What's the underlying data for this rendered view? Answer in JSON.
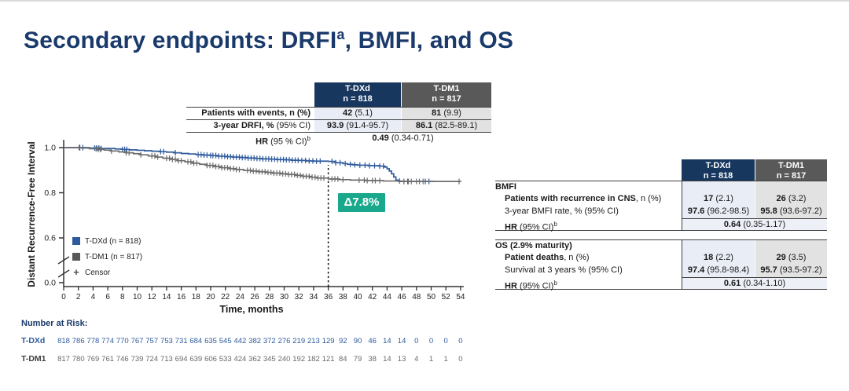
{
  "title": {
    "prefix": "Secondary endpoints: DRFI",
    "sup": "a",
    "suffix": ", BMFI, and OS"
  },
  "colors": {
    "title_navy": "#1a3a6b",
    "header_blue": "#17375e",
    "header_gray": "#595959",
    "cell_light_blue": "#e9edf6",
    "cell_light_gray": "#e2e2e2",
    "curve_blue": "#2e5b9e",
    "curve_gray": "#6d6d6d",
    "delta_green": "#19a88b"
  },
  "drfi_table": {
    "col_headers": [
      {
        "line1": "T-DXd",
        "line2": "n = 818"
      },
      {
        "line1": "T-DM1",
        "line2": "n = 817"
      }
    ],
    "rows": [
      {
        "label_b": "Patients with events, n (%)",
        "label_r": "",
        "tdxd_b": "42",
        "tdxd_r": " (5.1)",
        "tdm1_b": "81",
        "tdm1_r": " (9.9)"
      },
      {
        "label_b": "3-year DRFI, %",
        "label_r": " (95% CI)",
        "tdxd_b": "93.9",
        "tdxd_r": " (91.4-95.7)",
        "tdm1_b": "86.1",
        "tdm1_r": " (82.5-89.1)"
      }
    ],
    "hr_row": {
      "label_b": "HR",
      "label_r": " (95 % CI)",
      "sup": "b",
      "value_b": "0.49",
      "value_r": " (0.34-0.71)"
    }
  },
  "right_tables": {
    "col_headers": [
      {
        "line1": "T-DXd",
        "line2": "n = 818"
      },
      {
        "line1": "T-DM1",
        "line2": "n = 817"
      }
    ],
    "bmfi": {
      "section": "BMFI",
      "rows": [
        {
          "label_b": "Patients with recurrence in CNS",
          "label_r": ", n (%)",
          "tdxd_b": "17",
          "tdxd_r": " (2.1)",
          "tdm1_b": "26",
          "tdm1_r": " (3.2)"
        },
        {
          "label_b": "",
          "label_r": "3-year BMFI rate, % (95% CI)",
          "tdxd_b": "97.6",
          "tdxd_r": " (96.2-98.5)",
          "tdm1_b": "95.8",
          "tdm1_r": " (93.6-97.2)"
        }
      ],
      "hr_row": {
        "label_b": "HR",
        "label_r": " (95% CI)",
        "sup": "b",
        "value_b": "0.64",
        "value_r": " (0.35-1.17)"
      }
    },
    "os": {
      "section": "OS (2.9% maturity)",
      "rows": [
        {
          "label_b": "Patient deaths",
          "label_r": ", n (%)",
          "tdxd_b": "18",
          "tdxd_r": " (2.2)",
          "tdm1_b": "29",
          "tdm1_r": " (3.5)"
        },
        {
          "label_b": "",
          "label_r": "Survival at 3 years % (95% CI)",
          "tdxd_b": "97.4",
          "tdxd_r": " (95.8-98.4)",
          "tdm1_b": "95.7",
          "tdm1_r": " (93.5-97.2)"
        }
      ],
      "hr_row": {
        "label_b": "HR",
        "label_r": " (95% CI)",
        "sup": "b",
        "value_b": "0.61",
        "value_r": " (0.34-1.10)"
      }
    }
  },
  "chart_data": {
    "type": "line",
    "subtype": "kaplan-meier-step",
    "ylabel": "Distant Recurrence-Free Interval",
    "xlabel": "Time, months",
    "xlim": [
      0,
      54
    ],
    "x_ticks": [
      0,
      2,
      4,
      6,
      8,
      10,
      12,
      14,
      16,
      18,
      20,
      22,
      24,
      26,
      28,
      30,
      32,
      34,
      36,
      38,
      40,
      42,
      44,
      46,
      48,
      50,
      52,
      54
    ],
    "y_ticks": [
      0.0,
      0.6,
      0.8,
      1.0
    ],
    "y_break": true,
    "grid": false,
    "reference_line_x": 36,
    "annotation": {
      "text": "Δ7.8%",
      "x": 38,
      "y": 0.88,
      "color": "#19a88b"
    },
    "key_values": {
      "tdxd_3yr_drfi": 93.9,
      "tdm1_3yr_drfi": 86.1,
      "delta_pct": 7.8
    },
    "legend": {
      "position": "inside-left",
      "censor_symbol": "+",
      "censor_label": "Censor"
    },
    "series": [
      {
        "name": "T-DXd (n = 818)",
        "color": "#2e5b9e",
        "end": 50.5,
        "steps": [
          [
            3.5,
            0.998
          ],
          [
            5,
            0.996
          ],
          [
            7,
            0.994
          ],
          [
            8,
            0.992
          ],
          [
            9,
            0.99
          ],
          [
            10,
            0.988
          ],
          [
            11,
            0.986
          ],
          [
            12,
            0.984
          ],
          [
            13,
            0.982
          ],
          [
            14,
            0.98
          ],
          [
            15,
            0.977
          ],
          [
            16,
            0.974
          ],
          [
            17,
            0.972
          ],
          [
            18,
            0.969
          ],
          [
            19,
            0.967
          ],
          [
            20,
            0.965
          ],
          [
            21,
            0.962
          ],
          [
            22,
            0.96
          ],
          [
            23,
            0.958
          ],
          [
            24,
            0.956
          ],
          [
            25,
            0.954
          ],
          [
            26,
            0.952
          ],
          [
            27,
            0.95
          ],
          [
            28,
            0.949
          ],
          [
            29,
            0.947
          ],
          [
            30,
            0.946
          ],
          [
            31,
            0.944
          ],
          [
            32,
            0.943
          ],
          [
            33,
            0.941
          ],
          [
            34,
            0.94
          ],
          [
            36,
            0.939
          ],
          [
            37,
            0.933
          ],
          [
            38,
            0.929
          ],
          [
            38.6,
            0.926
          ],
          [
            39.3,
            0.924
          ],
          [
            40,
            0.922
          ],
          [
            41.5,
            0.92
          ],
          [
            43,
            0.918
          ],
          [
            43.6,
            0.914
          ],
          [
            44,
            0.906
          ],
          [
            44.3,
            0.896
          ],
          [
            44.6,
            0.884
          ],
          [
            44.9,
            0.87
          ],
          [
            45.2,
            0.856
          ],
          [
            45.6,
            0.85
          ]
        ],
        "censor_x": [
          2.2,
          2.6,
          4.2,
          4.5,
          4.8,
          5.1,
          8,
          8.3,
          8.6,
          13.2,
          13.6,
          15.2,
          18.3,
          18.7,
          19.1,
          19.5,
          20,
          20.3,
          20.7,
          21.1,
          21.5,
          21.9,
          22.3,
          22.7,
          23.1,
          23.5,
          23.9,
          24.3,
          24.7,
          25.1,
          25.5,
          25.9,
          26.3,
          26.7,
          27.1,
          27.5,
          27.9,
          28.3,
          28.7,
          29.1,
          29.5,
          29.9,
          30.3,
          30.7,
          31.1,
          31.5,
          31.9,
          32.4,
          32.9,
          33.4,
          33.9,
          34.4,
          34.9,
          36.5,
          37,
          37.6,
          38.3,
          39,
          39.6,
          40.3,
          41,
          41.6,
          42.3,
          43,
          43.5,
          46.3,
          46.8,
          49.2,
          49.7
        ]
      },
      {
        "name": "T-DM1 (n = 817)",
        "color": "#6d6d6d",
        "end": 54,
        "steps": [
          [
            2.5,
            0.998
          ],
          [
            3.5,
            0.995
          ],
          [
            4.5,
            0.992
          ],
          [
            5.5,
            0.989
          ],
          [
            6.5,
            0.985
          ],
          [
            7.5,
            0.981
          ],
          [
            8.5,
            0.977
          ],
          [
            9.5,
            0.973
          ],
          [
            10.5,
            0.968
          ],
          [
            11.5,
            0.963
          ],
          [
            12.5,
            0.958
          ],
          [
            13.5,
            0.953
          ],
          [
            14.5,
            0.948
          ],
          [
            15.5,
            0.942
          ],
          [
            16.5,
            0.937
          ],
          [
            17.5,
            0.931
          ],
          [
            18.5,
            0.926
          ],
          [
            19.5,
            0.921
          ],
          [
            20.5,
            0.916
          ],
          [
            21.5,
            0.911
          ],
          [
            22.5,
            0.907
          ],
          [
            23.5,
            0.903
          ],
          [
            24.5,
            0.899
          ],
          [
            25.5,
            0.896
          ],
          [
            26.5,
            0.893
          ],
          [
            27.5,
            0.89
          ],
          [
            28.5,
            0.887
          ],
          [
            29.5,
            0.884
          ],
          [
            30.5,
            0.881
          ],
          [
            31.5,
            0.877
          ],
          [
            32.5,
            0.873
          ],
          [
            33.5,
            0.869
          ],
          [
            34.5,
            0.865
          ],
          [
            36,
            0.861
          ],
          [
            37.5,
            0.858
          ],
          [
            39,
            0.856
          ],
          [
            41,
            0.854
          ],
          [
            43.5,
            0.852
          ],
          [
            46,
            0.85
          ]
        ],
        "censor_x": [
          2.1,
          4.4,
          4.7,
          5,
          6.5,
          8.5,
          8.9,
          10.5,
          12,
          12.4,
          12.8,
          14,
          14.4,
          14.8,
          15.2,
          15.6,
          16,
          16.9,
          17.3,
          17.7,
          18.1,
          19.5,
          19.9,
          20.3,
          20.7,
          21.1,
          21.5,
          21.9,
          22.3,
          22.7,
          23.1,
          23.5,
          23.9,
          25,
          25.4,
          25.8,
          26.2,
          26.6,
          27,
          27.4,
          27.8,
          28.2,
          28.6,
          29,
          29.4,
          29.8,
          30.2,
          30.6,
          31,
          31.4,
          31.8,
          32.2,
          32.6,
          33,
          33.4,
          33.8,
          34.2,
          34.6,
          35,
          35.4,
          36.5,
          36.9,
          37.3,
          38,
          40.2,
          40.9,
          41.3,
          42,
          42.4,
          43,
          45.7,
          46.3,
          46.9,
          47.3,
          48,
          48.4,
          48.9,
          53.8
        ]
      }
    ]
  },
  "number_at_risk": {
    "heading": "Number at Risk:",
    "rows": [
      {
        "label": "T-DXd",
        "values": [
          818,
          786,
          778,
          774,
          770,
          767,
          757,
          753,
          731,
          684,
          635,
          545,
          442,
          382,
          372,
          276,
          219,
          213,
          129,
          92,
          90,
          46,
          14,
          14,
          0,
          0,
          0,
          0
        ]
      },
      {
        "label": "T-DM1",
        "values": [
          817,
          780,
          769,
          761,
          746,
          739,
          724,
          713,
          694,
          639,
          606,
          533,
          424,
          362,
          345,
          240,
          192,
          182,
          121,
          84,
          79,
          38,
          14,
          13,
          4,
          1,
          1,
          0
        ]
      }
    ]
  }
}
